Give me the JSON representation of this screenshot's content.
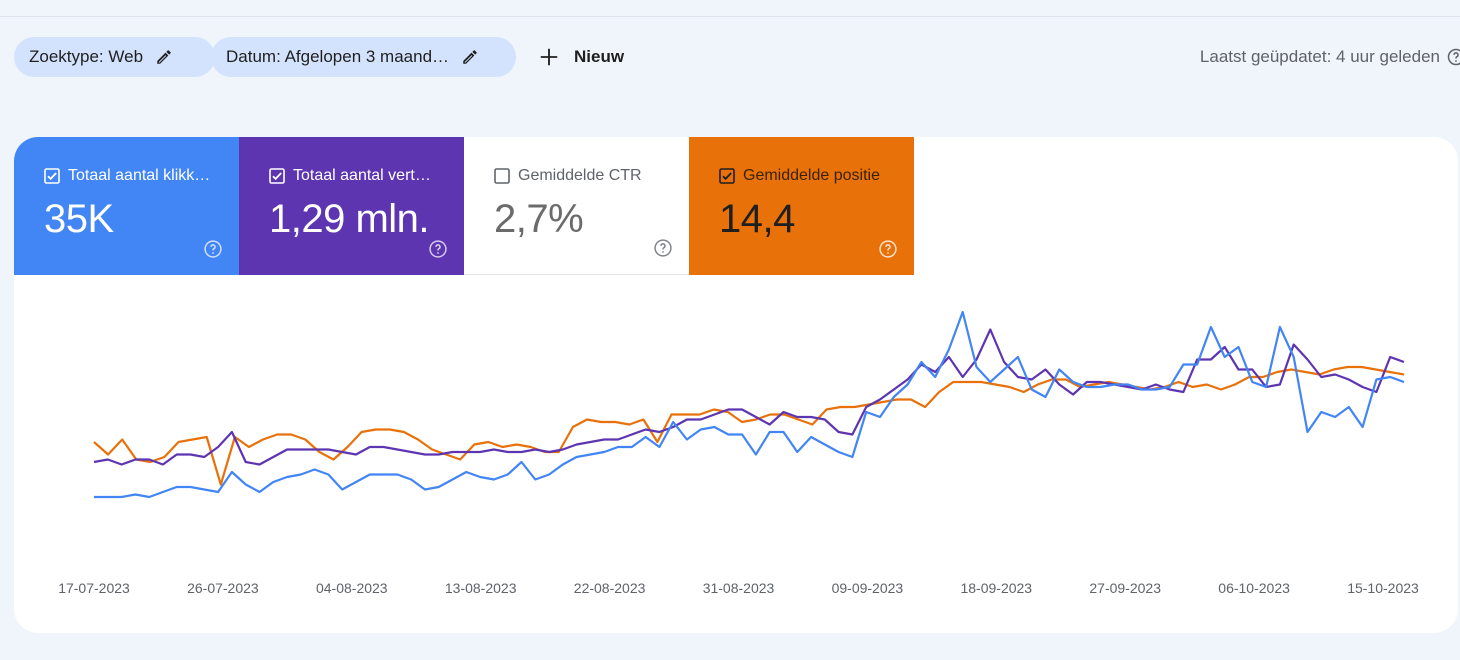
{
  "toolbar": {
    "filter_type_label": "Zoektype: Web",
    "filter_date_label": "Datum: Afgelopen 3 maand…",
    "new_label": "Nieuw",
    "last_updated": "Laatst geüpdatet: 4 uur geleden"
  },
  "metrics": [
    {
      "label": "Totaal aantal klikk…",
      "value": "35K",
      "checked": true,
      "color": "#4285f4"
    },
    {
      "label": "Totaal aantal vert…",
      "value": "1,29 mln.",
      "checked": true,
      "color": "#5e35b1"
    },
    {
      "label": "Gemiddelde CTR",
      "value": "2,7%",
      "checked": false,
      "color": "#ffffff"
    },
    {
      "label": "Gemiddelde positie",
      "value": "14,4",
      "checked": true,
      "color": "#e8710a"
    }
  ],
  "chart_data": {
    "type": "line",
    "x_tick_labels": [
      "17-07-2023",
      "26-07-2023",
      "04-08-2023",
      "13-08-2023",
      "22-08-2023",
      "31-08-2023",
      "09-09-2023",
      "18-09-2023",
      "27-09-2023",
      "06-10-2023",
      "15-10-2023"
    ],
    "x_range": [
      "17-07-2023",
      "16-10-2023"
    ],
    "grid": false,
    "legend": "none",
    "series": [
      {
        "color": "#e8710a",
        "values": [
          42,
          37,
          43,
          35,
          34,
          36,
          42,
          43,
          44,
          25,
          44,
          40,
          43,
          45,
          45,
          43,
          38,
          35,
          40,
          46,
          47,
          47,
          46,
          43,
          39,
          37,
          35,
          41,
          42,
          40,
          41,
          40,
          38,
          38,
          48,
          51,
          50,
          50,
          49,
          51,
          42,
          53,
          53,
          53,
          55,
          54,
          50,
          51,
          53,
          53,
          51,
          49,
          55,
          56,
          56,
          57,
          58,
          59,
          59,
          56,
          62,
          66,
          66,
          66,
          65,
          64,
          62,
          65,
          67,
          67,
          64,
          65,
          66,
          65,
          64,
          63,
          64,
          66,
          64,
          65,
          63,
          65,
          68,
          68,
          70,
          71,
          70,
          69,
          71,
          72,
          72,
          71,
          70,
          69
        ]
      },
      {
        "color": "#5e35b1",
        "values": [
          34,
          35,
          33,
          35,
          35,
          33,
          37,
          37,
          36,
          40,
          46,
          34,
          33,
          36,
          39,
          39,
          39,
          39,
          38,
          37,
          40,
          40,
          39,
          38,
          37,
          37,
          38,
          38,
          38,
          39,
          38,
          38,
          39,
          38,
          39,
          41,
          42,
          43,
          43,
          45,
          47,
          46,
          48,
          51,
          51,
          53,
          55,
          55,
          52,
          49,
          54,
          52,
          52,
          51,
          46,
          45,
          56,
          59,
          63,
          67,
          73,
          70,
          76,
          68,
          75,
          87,
          74,
          68,
          67,
          71,
          65,
          61,
          66,
          66,
          65,
          64,
          63,
          65,
          63,
          62,
          75,
          75,
          80,
          71,
          71,
          64,
          65,
          81,
          75,
          68,
          69,
          67,
          64,
          62,
          76,
          74
        ]
      },
      {
        "color": "#4285f4",
        "values": [
          20,
          20,
          20,
          21,
          20,
          22,
          24,
          24,
          23,
          22,
          30,
          25,
          22,
          26,
          28,
          29,
          31,
          29,
          23,
          26,
          29,
          29,
          29,
          27,
          23,
          24,
          27,
          30,
          28,
          27,
          29,
          34,
          27,
          29,
          33,
          36,
          37,
          38,
          40,
          40,
          44,
          40,
          50,
          43,
          47,
          48,
          45,
          45,
          37,
          46,
          46,
          38,
          44,
          41,
          38,
          36,
          54,
          52,
          60,
          65,
          74,
          68,
          79,
          94,
          72,
          66,
          71,
          76,
          63,
          60,
          71,
          66,
          64,
          64,
          65,
          65,
          63,
          63,
          64,
          73,
          73,
          88,
          76,
          80,
          66,
          64,
          88,
          76,
          46,
          54,
          52,
          56,
          48,
          67,
          68,
          66
        ]
      }
    ]
  }
}
